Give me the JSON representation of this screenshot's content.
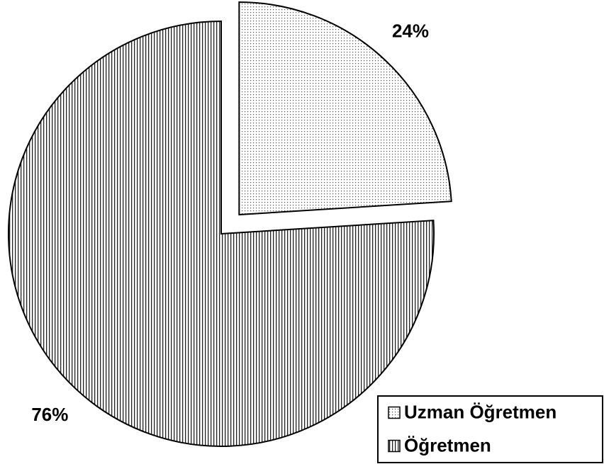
{
  "chart_data": {
    "type": "pie",
    "categories": [
      "Uzman Öğretmen",
      "Öğretmen"
    ],
    "values": [
      24,
      76
    ],
    "value_labels": [
      "24%",
      "76%"
    ],
    "patterns": [
      "dots",
      "vertical-lines"
    ],
    "legend": "bottom-right"
  }
}
